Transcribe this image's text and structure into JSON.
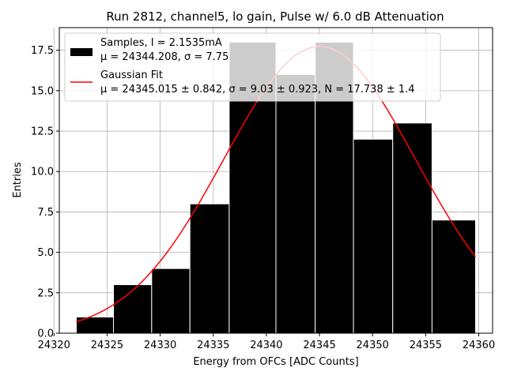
{
  "chart_data": {
    "type": "bar",
    "title": "Run 2812, channel5, lo gain, Pulse w/ 6.0 dB Attenuation",
    "xlabel": "Energy from OFCs [ADC Counts]",
    "ylabel": "Entries",
    "xlim": [
      24320.5,
      24361.3
    ],
    "ylim": [
      0,
      18.9
    ],
    "grid": true,
    "legend_position": "upper-left",
    "x_ticks": [
      24320,
      24325,
      24330,
      24335,
      24340,
      24345,
      24350,
      24355,
      24360
    ],
    "y_ticks": [
      0.0,
      2.5,
      5.0,
      7.5,
      10.0,
      12.5,
      15.0,
      17.5
    ],
    "x_tick_labels": [
      "24320",
      "24325",
      "24330",
      "24335",
      "24340",
      "24345",
      "24350",
      "24355",
      "24360"
    ],
    "y_tick_labels": [
      "0.0",
      "2.5",
      "5.0",
      "7.5",
      "10.0",
      "12.5",
      "15.0",
      "17.5"
    ],
    "bins": [
      24322.1,
      24325.6,
      24329.2,
      24332.8,
      24336.5,
      24340.9,
      24344.6,
      24348.2,
      24351.9,
      24355.6,
      24359.7
    ],
    "counts": [
      1,
      3,
      4,
      8,
      18,
      16,
      18,
      12,
      13,
      7
    ],
    "bar_color": "#000000",
    "series": [
      {
        "name": "Samples",
        "legend_line1": "Samples, I = 2.1535mA",
        "legend_line2": "μ = 24344.208, σ = 7.75",
        "color": "#000000"
      },
      {
        "name": "Gaussian Fit",
        "legend_line1": "Gaussian Fit",
        "legend_line2": "μ = 24345.015 ± 0.842, σ = 9.03 ± 0.923, N = 17.738 ± 1.4",
        "color": "#ff0000",
        "mu": 24345.015,
        "sigma": 9.03,
        "N": 17.738,
        "x_range": [
          24322.1,
          24359.7
        ]
      }
    ]
  }
}
